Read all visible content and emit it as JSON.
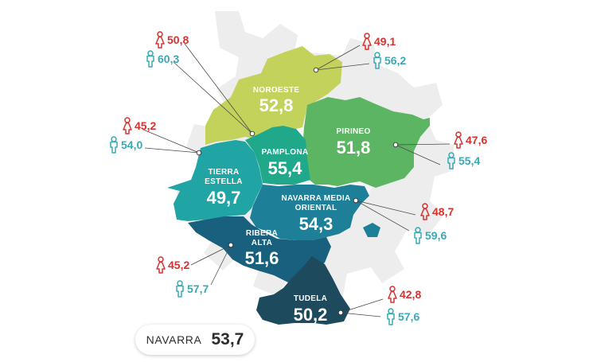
{
  "colors": {
    "female": "#d6322f",
    "male": "#39aab5",
    "gear": "#ededed",
    "noroeste": "#c2d25a",
    "pirineo": "#5bb562",
    "pamplona": "#1fa88a",
    "tierra_estella": "#20a4a4",
    "navarra_media_oriental": "#1d7f98",
    "ribera_alta": "#19607e",
    "tudela": "#1d4a5d"
  },
  "icons": {
    "female": "female-person-icon",
    "male": "male-person-icon"
  },
  "regions": {
    "noroeste": {
      "name": "NOROESTE",
      "value": "52,8",
      "female": "49,1",
      "male": "56,2"
    },
    "pamplona": {
      "name": "PAMPLONA",
      "value": "55,4",
      "female": "50,8",
      "male": "60,3"
    },
    "pirineo": {
      "name": "PIRINEO",
      "value": "51,8",
      "female": "47,6",
      "male": "55,4"
    },
    "tierra_estella": {
      "name1": "TIERRA",
      "name2": "ESTELLA",
      "value": "49,7",
      "female": "45,2",
      "male": "54,0"
    },
    "navarra_media_oriental": {
      "name1": "NAVARRA MEDIA",
      "name2": "ORIENTAL",
      "value": "54,3",
      "female": "48,7",
      "male": "59,6"
    },
    "ribera_alta": {
      "name1": "RIBERA",
      "name2": "ALTA",
      "value": "51,6",
      "female": "45,2",
      "male": "57,7"
    },
    "tudela": {
      "name": "TUDELA",
      "value": "50,2",
      "female": "42,8",
      "male": "57,6"
    }
  },
  "total": {
    "name": "NAVARRA",
    "value": "53,7"
  }
}
